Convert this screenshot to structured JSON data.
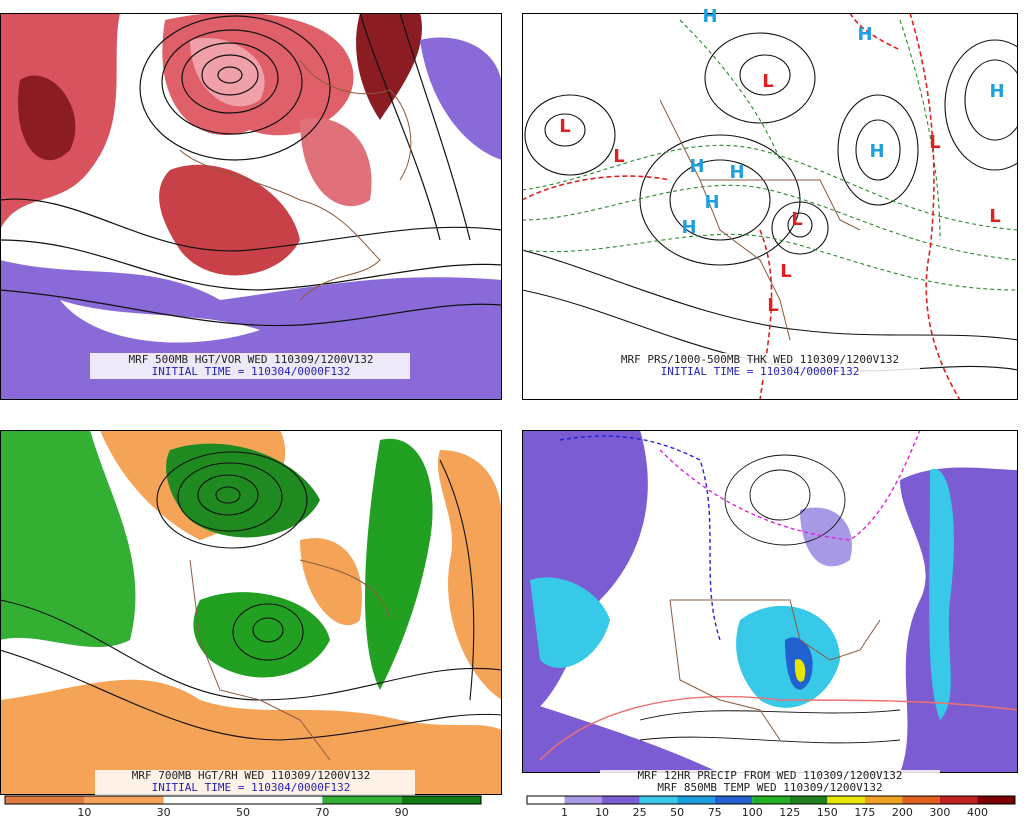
{
  "panels": [
    {
      "caption": "MRF 500MB HGT/VOR WED 110309/1200V132",
      "initial_time": "INITIAL TIME = 110304/0000F132"
    },
    {
      "caption": "MRF PRS/1000-500MB THK WED 110309/1200V132",
      "initial_time": "INITIAL TIME = 110304/0000F132",
      "centers": [
        "H",
        "H",
        "H",
        "H",
        "H",
        "H",
        "H",
        "H",
        "L",
        "L",
        "L",
        "L",
        "L",
        "L",
        "L",
        "L"
      ]
    },
    {
      "caption": "MRF 700MB HGT/RH WED 110309/1200V132",
      "initial_time": "INITIAL TIME = 110304/0000F132",
      "colorbar": {
        "colors": [
          "#e07a40",
          "#f5a357",
          "#ffffff",
          "#ffffff",
          "#33b033",
          "#127a12"
        ],
        "labels": [
          10,
          30,
          50,
          70,
          90
        ]
      }
    },
    {
      "caption": "MRF 12HR PRECIP FROM WED 110309/1200V132",
      "subcaption": "MRF 850MB TEMP WED 110309/1200V132",
      "colorbar": {
        "colors": [
          "#ffffff",
          "#a898e6",
          "#7b5cd2",
          "#38c8e8",
          "#1e9ee0",
          "#2262d0",
          "#22b022",
          "#1f7f1f",
          "#e6e600",
          "#f0a020",
          "#e06020",
          "#c02020",
          "#7a0000"
        ],
        "labels": [
          1,
          10,
          25,
          50,
          75,
          100,
          125,
          150,
          175,
          200,
          300,
          400
        ]
      }
    }
  ]
}
